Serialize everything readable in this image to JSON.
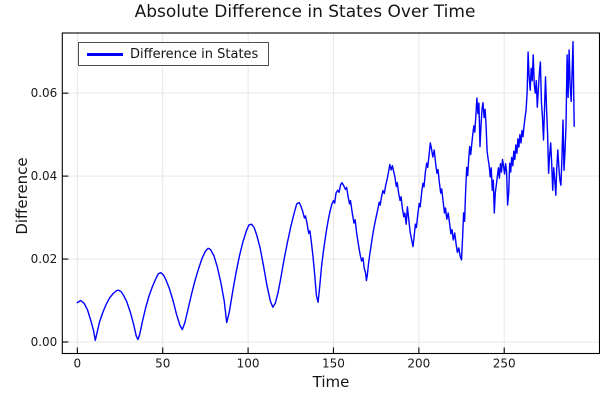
{
  "chart_data": {
    "type": "line",
    "title": "Absolute Difference in States Over Time",
    "xlabel": "Time",
    "ylabel": "Difference",
    "grid": true,
    "legend": {
      "position": "top-left",
      "entries": [
        {
          "label": "Difference in States",
          "color": "#0000ff"
        }
      ]
    },
    "colors": {
      "line": "#0000ff",
      "grid": "#e7e7e7",
      "axis": "#000000",
      "tick_text": "#1a1a1a"
    },
    "xlim": [
      -8.8,
      305.8
    ],
    "ylim": [
      -0.00277,
      0.0745
    ],
    "x_ticks": [
      0,
      50,
      100,
      150,
      200,
      250
    ],
    "x_tick_labels": [
      "0",
      "50",
      "100",
      "150",
      "200",
      "250"
    ],
    "y_ticks": [
      0,
      0.02,
      0.04,
      0.06
    ],
    "y_tick_labels": [
      "0.00",
      "0.02",
      "0.04",
      "0.06"
    ],
    "series": [
      {
        "name": "Difference in States",
        "color": "#0000ff",
        "points": [
          [
            0,
            0.0095
          ],
          [
            2,
            0.01
          ],
          [
            4,
            0.0093
          ],
          [
            6,
            0.0077
          ],
          [
            8,
            0.005
          ],
          [
            9.5,
            0.0028
          ],
          [
            10.5,
            0.0004
          ],
          [
            11.5,
            0.0022
          ],
          [
            13,
            0.0048
          ],
          [
            15,
            0.0072
          ],
          [
            17,
            0.0092
          ],
          [
            19,
            0.0107
          ],
          [
            21,
            0.0117
          ],
          [
            23,
            0.0124
          ],
          [
            24,
            0.0125
          ],
          [
            25.5,
            0.0122
          ],
          [
            27,
            0.0113
          ],
          [
            29,
            0.0097
          ],
          [
            31,
            0.0072
          ],
          [
            33,
            0.0042
          ],
          [
            34.5,
            0.0015
          ],
          [
            35.5,
            0.0006
          ],
          [
            36.5,
            0.0018
          ],
          [
            38,
            0.0047
          ],
          [
            40,
            0.0082
          ],
          [
            42,
            0.0111
          ],
          [
            44,
            0.0134
          ],
          [
            46,
            0.0153
          ],
          [
            47.5,
            0.0165
          ],
          [
            49,
            0.0167
          ],
          [
            50.5,
            0.0161
          ],
          [
            52,
            0.0149
          ],
          [
            54,
            0.0128
          ],
          [
            56,
            0.01
          ],
          [
            58,
            0.0068
          ],
          [
            60,
            0.0041
          ],
          [
            61.5,
            0.003
          ],
          [
            63,
            0.0047
          ],
          [
            65,
            0.0082
          ],
          [
            67,
            0.0117
          ],
          [
            69,
            0.0149
          ],
          [
            71,
            0.0177
          ],
          [
            73,
            0.0201
          ],
          [
            75,
            0.0219
          ],
          [
            76.5,
            0.0226
          ],
          [
            78,
            0.0223
          ],
          [
            80,
            0.0208
          ],
          [
            82,
            0.0181
          ],
          [
            84,
            0.0144
          ],
          [
            86,
            0.0099
          ],
          [
            87.5,
            0.0047
          ],
          [
            89,
            0.0072
          ],
          [
            91,
            0.0122
          ],
          [
            93,
            0.0168
          ],
          [
            95,
            0.0208
          ],
          [
            97,
            0.0242
          ],
          [
            99,
            0.0268
          ],
          [
            100.5,
            0.0282
          ],
          [
            102,
            0.0284
          ],
          [
            103.5,
            0.0276
          ],
          [
            105,
            0.0259
          ],
          [
            107,
            0.0228
          ],
          [
            109,
            0.0184
          ],
          [
            111,
            0.0137
          ],
          [
            113,
            0.0099
          ],
          [
            114.5,
            0.0084
          ],
          [
            116,
            0.0094
          ],
          [
            117.5,
            0.0119
          ],
          [
            119,
            0.015
          ],
          [
            121,
            0.0197
          ],
          [
            123,
            0.024
          ],
          [
            125,
            0.0278
          ],
          [
            127,
            0.0311
          ],
          [
            128.5,
            0.0333
          ],
          [
            130,
            0.0336
          ],
          [
            131,
            0.0327
          ],
          [
            132,
            0.0315
          ],
          [
            133,
            0.0299
          ],
          [
            133.6,
            0.0304
          ],
          [
            134.5,
            0.0286
          ],
          [
            135.5,
            0.0262
          ],
          [
            136.2,
            0.0268
          ],
          [
            137,
            0.0242
          ],
          [
            138,
            0.0206
          ],
          [
            139,
            0.0162
          ],
          [
            140,
            0.0112
          ],
          [
            141,
            0.0096
          ],
          [
            142,
            0.0136
          ],
          [
            143,
            0.0181
          ],
          [
            144,
            0.0215
          ],
          [
            145,
            0.0244
          ],
          [
            146,
            0.0271
          ],
          [
            147,
            0.0295
          ],
          [
            148,
            0.0315
          ],
          [
            149,
            0.0332
          ],
          [
            150,
            0.0341
          ],
          [
            150.7,
            0.0335
          ],
          [
            151.5,
            0.0359
          ],
          [
            152.5,
            0.0366
          ],
          [
            153.3,
            0.0361
          ],
          [
            154.2,
            0.0379
          ],
          [
            155,
            0.0384
          ],
          [
            156,
            0.0377
          ],
          [
            157,
            0.0368
          ],
          [
            157.7,
            0.0373
          ],
          [
            158.5,
            0.0352
          ],
          [
            159.4,
            0.0333
          ],
          [
            160,
            0.0341
          ],
          [
            161,
            0.0312
          ],
          [
            162,
            0.0287
          ],
          [
            162.7,
            0.0295
          ],
          [
            163.6,
            0.0262
          ],
          [
            164.6,
            0.0235
          ],
          [
            165.6,
            0.0211
          ],
          [
            166.5,
            0.0195
          ],
          [
            167.3,
            0.0203
          ],
          [
            168,
            0.0178
          ],
          [
            168.8,
            0.0166
          ],
          [
            169.3,
            0.0148
          ],
          [
            169.8,
            0.0161
          ],
          [
            170.5,
            0.0188
          ],
          [
            171.3,
            0.0212
          ],
          [
            172.2,
            0.0237
          ],
          [
            173,
            0.0258
          ],
          [
            174,
            0.0281
          ],
          [
            175,
            0.0302
          ],
          [
            176,
            0.0321
          ],
          [
            176.8,
            0.0337
          ],
          [
            177.4,
            0.033
          ],
          [
            178.2,
            0.0351
          ],
          [
            179,
            0.0365
          ],
          [
            179.8,
            0.0358
          ],
          [
            180.6,
            0.0378
          ],
          [
            181.4,
            0.0392
          ],
          [
            182.2,
            0.0408
          ],
          [
            183,
            0.0428
          ],
          [
            183.8,
            0.0415
          ],
          [
            184.5,
            0.0425
          ],
          [
            185.2,
            0.0412
          ],
          [
            186,
            0.0398
          ],
          [
            186.8,
            0.0375
          ],
          [
            187.4,
            0.0384
          ],
          [
            188.2,
            0.0358
          ],
          [
            189,
            0.0341
          ],
          [
            189.6,
            0.035
          ],
          [
            190.4,
            0.0322
          ],
          [
            191.2,
            0.0302
          ],
          [
            191.8,
            0.0311
          ],
          [
            192.6,
            0.0284
          ],
          [
            193.3,
            0.0326
          ],
          [
            194.9,
            0.0266
          ],
          [
            195.8,
            0.0246
          ],
          [
            196.6,
            0.023
          ],
          [
            197.2,
            0.0254
          ],
          [
            198,
            0.0284
          ],
          [
            198.6,
            0.0276
          ],
          [
            199.4,
            0.0308
          ],
          [
            200.2,
            0.0334
          ],
          [
            200.8,
            0.0326
          ],
          [
            201.6,
            0.0359
          ],
          [
            202.4,
            0.0383
          ],
          [
            203,
            0.0374
          ],
          [
            203.8,
            0.0408
          ],
          [
            204.6,
            0.0431
          ],
          [
            205.2,
            0.0421
          ],
          [
            206,
            0.0452
          ],
          [
            206.7,
            0.048
          ],
          [
            207.4,
            0.0466
          ],
          [
            208.2,
            0.0446
          ],
          [
            209,
            0.0463
          ],
          [
            209.8,
            0.0431
          ],
          [
            210.6,
            0.0407
          ],
          [
            211.2,
            0.0416
          ],
          [
            212,
            0.0386
          ],
          [
            212.8,
            0.0359
          ],
          [
            213.4,
            0.0369
          ],
          [
            214.2,
            0.0339
          ],
          [
            215,
            0.0311
          ],
          [
            215.6,
            0.0323
          ],
          [
            216.4,
            0.0296
          ],
          [
            217.2,
            0.0311
          ],
          [
            218,
            0.0286
          ],
          [
            218.8,
            0.0261
          ],
          [
            219.4,
            0.0271
          ],
          [
            220.2,
            0.0246
          ],
          [
            221,
            0.0263
          ],
          [
            221.8,
            0.0236
          ],
          [
            222.6,
            0.0216
          ],
          [
            223.4,
            0.0227
          ],
          [
            224.2,
            0.0207
          ],
          [
            225,
            0.0198
          ],
          [
            225.6,
            0.0252
          ],
          [
            226.2,
            0.0311
          ],
          [
            226.8,
            0.0291
          ],
          [
            227.4,
            0.0362
          ],
          [
            228,
            0.0421
          ],
          [
            228.6,
            0.0401
          ],
          [
            229.2,
            0.0441
          ],
          [
            229.8,
            0.0471
          ],
          [
            230.4,
            0.0452
          ],
          [
            231,
            0.0478
          ],
          [
            231.6,
            0.0501
          ],
          [
            232.2,
            0.0521
          ],
          [
            232.8,
            0.0506
          ],
          [
            233.4,
            0.0547
          ],
          [
            234,
            0.0588
          ],
          [
            234.6,
            0.0551
          ],
          [
            235.2,
            0.0576
          ],
          [
            235.8,
            0.0471
          ],
          [
            236.4,
            0.0521
          ],
          [
            237,
            0.0561
          ],
          [
            237.6,
            0.0577
          ],
          [
            238.2,
            0.0541
          ],
          [
            238.8,
            0.0561
          ],
          [
            239.4,
            0.0521
          ],
          [
            240,
            0.046
          ],
          [
            240.6,
            0.044
          ],
          [
            241.2,
            0.0425
          ],
          [
            241.8,
            0.0398
          ],
          [
            242.4,
            0.042
          ],
          [
            243,
            0.0366
          ],
          [
            243.6,
            0.039
          ],
          [
            244.2,
            0.0311
          ],
          [
            244.8,
            0.036
          ],
          [
            245.4,
            0.038
          ],
          [
            246,
            0.04
          ],
          [
            246.6,
            0.042
          ],
          [
            247.2,
            0.0395
          ],
          [
            247.8,
            0.043
          ],
          [
            248.4,
            0.041
          ],
          [
            249,
            0.044
          ],
          [
            249.6,
            0.0425
          ],
          [
            250.2,
            0.0405
          ],
          [
            250.8,
            0.043
          ],
          [
            251.4,
            0.041
          ],
          [
            252,
            0.033
          ],
          [
            252.6,
            0.036
          ],
          [
            253.2,
            0.0431
          ],
          [
            253.8,
            0.041
          ],
          [
            254.4,
            0.0445
          ],
          [
            255,
            0.0425
          ],
          [
            255.6,
            0.046
          ],
          [
            256.2,
            0.044
          ],
          [
            256.8,
            0.0475
          ],
          [
            257.4,
            0.0455
          ],
          [
            258,
            0.049
          ],
          [
            258.6,
            0.047
          ],
          [
            259.2,
            0.05
          ],
          [
            259.8,
            0.048
          ],
          [
            260.4,
            0.051
          ],
          [
            261,
            0.0495
          ],
          [
            261.6,
            0.052
          ],
          [
            262.2,
            0.0542
          ],
          [
            262.8,
            0.056
          ],
          [
            263.4,
            0.06
          ],
          [
            264,
            0.0699
          ],
          [
            264.6,
            0.064
          ],
          [
            265.2,
            0.0607
          ],
          [
            265.8,
            0.066
          ],
          [
            266.4,
            0.063
          ],
          [
            267,
            0.0692
          ],
          [
            267.6,
            0.062
          ],
          [
            268.2,
            0.06
          ],
          [
            268.8,
            0.063
          ],
          [
            269.4,
            0.0566
          ],
          [
            270,
            0.061
          ],
          [
            270.6,
            0.065
          ],
          [
            271.2,
            0.0675
          ],
          [
            271.8,
            0.058
          ],
          [
            272.4,
            0.054
          ],
          [
            273,
            0.0487
          ],
          [
            273.6,
            0.056
          ],
          [
            274.2,
            0.0639
          ],
          [
            274.8,
            0.056
          ],
          [
            275.4,
            0.05
          ],
          [
            276,
            0.0407
          ],
          [
            276.6,
            0.045
          ],
          [
            277.2,
            0.048
          ],
          [
            277.8,
            0.043
          ],
          [
            278.4,
            0.0366
          ],
          [
            279,
            0.042
          ],
          [
            279.6,
            0.039
          ],
          [
            280.2,
            0.0354
          ],
          [
            280.8,
            0.042
          ],
          [
            281.4,
            0.0463
          ],
          [
            282,
            0.042
          ],
          [
            282.6,
            0.039
          ],
          [
            283.2,
            0.0378
          ],
          [
            283.8,
            0.044
          ],
          [
            284.4,
            0.0535
          ],
          [
            285,
            0.0414
          ],
          [
            285.6,
            0.046
          ],
          [
            286.2,
            0.052
          ],
          [
            286.8,
            0.0692
          ],
          [
            287.4,
            0.059
          ],
          [
            288,
            0.0704
          ],
          [
            288.6,
            0.062
          ],
          [
            289.2,
            0.058
          ],
          [
            289.8,
            0.066
          ],
          [
            290.3,
            0.0724
          ],
          [
            291,
            0.052
          ]
        ]
      }
    ]
  }
}
